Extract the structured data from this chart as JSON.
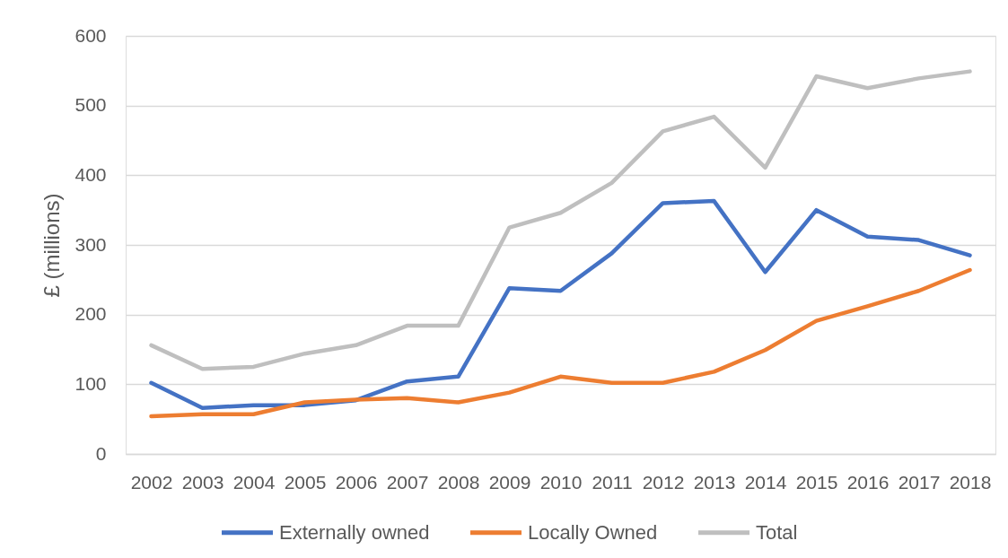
{
  "chart_data": {
    "type": "line",
    "ylabel": "£ (millions)",
    "categories": [
      "2002",
      "2003",
      "2004",
      "2005",
      "2006",
      "2007",
      "2008",
      "2009",
      "2010",
      "2011",
      "2012",
      "2013",
      "2014",
      "2015",
      "2016",
      "2017",
      "2018"
    ],
    "series": [
      {
        "name": "Externally owned",
        "color": "#4472c4",
        "values": [
          102,
          66,
          70,
          70,
          77,
          104,
          111,
          238,
          234,
          288,
          360,
          363,
          261,
          350,
          312,
          307,
          285
        ]
      },
      {
        "name": "Locally Owned",
        "color": "#ed7d31",
        "values": [
          54,
          57,
          57,
          74,
          78,
          80,
          74,
          88,
          111,
          102,
          102,
          118,
          149,
          191,
          212,
          234,
          264
        ]
      },
      {
        "name": "Total",
        "color": "#bfbfbf",
        "values": [
          156,
          122,
          125,
          144,
          156,
          184,
          184,
          325,
          346,
          389,
          463,
          484,
          411,
          542,
          525,
          539,
          549
        ]
      }
    ],
    "ylim": [
      0,
      600
    ],
    "yticks": [
      0,
      100,
      200,
      300,
      400,
      500,
      600
    ],
    "grid": "y",
    "legend": "bottom",
    "marker": "none",
    "line_style": "solid"
  }
}
